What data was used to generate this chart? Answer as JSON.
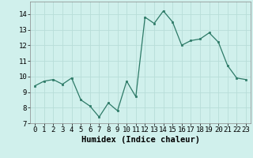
{
  "x": [
    0,
    1,
    2,
    3,
    4,
    5,
    6,
    7,
    8,
    9,
    10,
    11,
    12,
    13,
    14,
    15,
    16,
    17,
    18,
    19,
    20,
    21,
    22,
    23
  ],
  "y": [
    9.4,
    9.7,
    9.8,
    9.5,
    9.9,
    8.5,
    8.1,
    7.4,
    8.3,
    7.8,
    9.7,
    8.7,
    13.8,
    13.4,
    14.2,
    13.5,
    12.0,
    12.3,
    12.4,
    12.8,
    12.2,
    10.7,
    9.9,
    9.8
  ],
  "xlabel": "Humidex (Indice chaleur)",
  "xlim": [
    -0.5,
    23.5
  ],
  "ylim": [
    7,
    14.8
  ],
  "yticks": [
    7,
    8,
    9,
    10,
    11,
    12,
    13,
    14
  ],
  "xticks": [
    0,
    1,
    2,
    3,
    4,
    5,
    6,
    7,
    8,
    9,
    10,
    11,
    12,
    13,
    14,
    15,
    16,
    17,
    18,
    19,
    20,
    21,
    22,
    23
  ],
  "line_color": "#2d7a67",
  "marker_color": "#2d7a67",
  "bg_color": "#d0f0ec",
  "grid_color": "#b8ddd8",
  "tick_fontsize": 6.5,
  "xlabel_fontsize": 7.5
}
